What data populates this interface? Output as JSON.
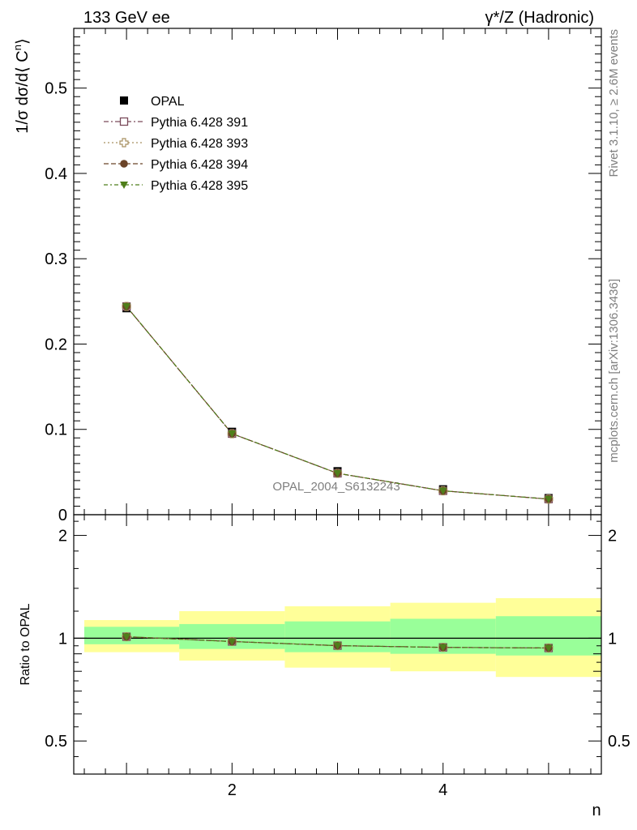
{
  "header": {
    "left_title": "133 GeV ee",
    "right_title": "γ*/Z (Hadronic)"
  },
  "side_labels": {
    "rivet": "Rivet 3.1.10, ≥ 2.6M events",
    "mcplots": "mcplots.cern.ch [arXiv:1306.3436]"
  },
  "watermark": "OPAL_2004_S6132243",
  "colors": {
    "opal": "#000000",
    "p391": "#7a4a5a",
    "p393": "#a89060",
    "p394": "#6b4428",
    "p395": "#4f7f1a",
    "band_inner": "#99ff99",
    "band_outer": "#ffff99"
  },
  "chart_data": [
    {
      "type": "scatter",
      "panel": "main",
      "ylabel": "1/σ dσ/d⟨ C^n⟩",
      "xlim": [
        0.5,
        5.5
      ],
      "ylim": [
        0,
        0.57
      ],
      "y_ticks": [
        "0",
        "0.1",
        "0.2",
        "0.3",
        "0.4",
        "0.5"
      ],
      "legend_position": "top-left",
      "series": [
        {
          "name": "OPAL",
          "marker": "square-filled",
          "x": [
            1,
            2,
            3,
            4,
            5
          ],
          "y": [
            0.242,
            0.0972,
            0.051,
            0.0298,
            0.0195
          ]
        },
        {
          "name": "Pythia 6.428 391",
          "marker": "square-open",
          "x": [
            1,
            2,
            3,
            4,
            5
          ],
          "y": [
            0.244,
            0.095,
            0.0485,
            0.028,
            0.0183
          ]
        },
        {
          "name": "Pythia 6.428 393",
          "marker": "cross-open",
          "x": [
            1,
            2,
            3,
            4,
            5
          ],
          "y": [
            0.244,
            0.095,
            0.0485,
            0.028,
            0.0183
          ]
        },
        {
          "name": "Pythia 6.428 394",
          "marker": "circle-filled",
          "x": [
            1,
            2,
            3,
            4,
            5
          ],
          "y": [
            0.244,
            0.095,
            0.0485,
            0.028,
            0.0183
          ]
        },
        {
          "name": "Pythia 6.428 395",
          "marker": "triangle-down-filled",
          "x": [
            1,
            2,
            3,
            4,
            5
          ],
          "y": [
            0.244,
            0.095,
            0.0485,
            0.028,
            0.0183
          ]
        }
      ]
    },
    {
      "type": "scatter",
      "panel": "ratio",
      "ylabel": "Ratio to OPAL",
      "xlabel": "n",
      "xlim": [
        0.5,
        5.5
      ],
      "ylim": [
        0.4,
        2.3
      ],
      "y_scale": "log",
      "x_ticks": [
        "2",
        "4"
      ],
      "y_ticks": [
        "0.5",
        "1",
        "2"
      ],
      "bands": [
        {
          "x_range": [
            0.6,
            1.5
          ],
          "inner": [
            0.96,
            1.08
          ],
          "outer": [
            0.91,
            1.13
          ]
        },
        {
          "x_range": [
            1.5,
            2.5
          ],
          "inner": [
            0.93,
            1.1
          ],
          "outer": [
            0.86,
            1.2
          ]
        },
        {
          "x_range": [
            2.5,
            3.5
          ],
          "inner": [
            0.91,
            1.12
          ],
          "outer": [
            0.82,
            1.24
          ]
        },
        {
          "x_range": [
            3.5,
            4.5
          ],
          "inner": [
            0.9,
            1.14
          ],
          "outer": [
            0.8,
            1.27
          ]
        },
        {
          "x_range": [
            4.5,
            5.5
          ],
          "inner": [
            0.89,
            1.16
          ],
          "outer": [
            0.77,
            1.31
          ]
        }
      ],
      "series": [
        {
          "name": "Pythia 6.428 391",
          "x": [
            1,
            2,
            3,
            4,
            5
          ],
          "y": [
            1.01,
            0.978,
            0.951,
            0.94,
            0.936
          ]
        },
        {
          "name": "Pythia 6.428 393",
          "x": [
            1,
            2,
            3,
            4,
            5
          ],
          "y": [
            1.01,
            0.978,
            0.951,
            0.94,
            0.936
          ]
        },
        {
          "name": "Pythia 6.428 394",
          "x": [
            1,
            2,
            3,
            4,
            5
          ],
          "y": [
            1.01,
            0.978,
            0.951,
            0.94,
            0.936
          ]
        },
        {
          "name": "Pythia 6.428 395",
          "x": [
            1,
            2,
            3,
            4,
            5
          ],
          "y": [
            1.01,
            0.978,
            0.951,
            0.94,
            0.936
          ]
        }
      ]
    }
  ]
}
